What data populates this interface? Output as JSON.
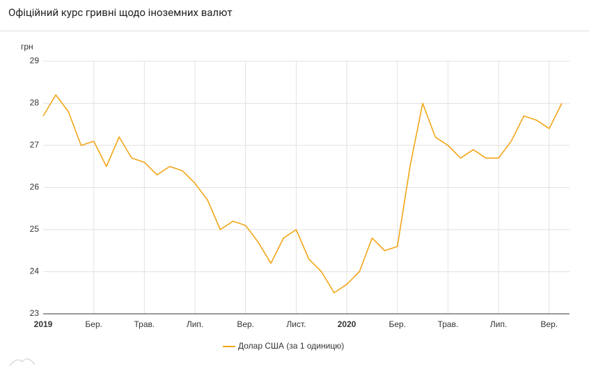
{
  "chart_data": {
    "type": "line",
    "title": "Офіційний курс гривні щодо іноземних валют",
    "y_label": "грн",
    "categories": [
      "2019",
      null,
      null,
      null,
      "Бер.",
      null,
      null,
      null,
      "Трав.",
      null,
      null,
      null,
      "Лип.",
      null,
      null,
      null,
      "Вер.",
      null,
      null,
      null,
      "Лист.",
      null,
      null,
      null,
      "2020",
      null,
      null,
      null,
      "Бер.",
      null,
      null,
      null,
      "Трав.",
      null,
      null,
      null,
      "Лип.",
      null,
      null,
      null,
      "Вер.",
      null
    ],
    "series": [
      {
        "name": "Долар США (за 1 одиницю)",
        "color": "#f2a516",
        "values": [
          27.7,
          28.2,
          27.8,
          27.0,
          27.1,
          26.5,
          27.2,
          26.7,
          26.6,
          26.3,
          26.5,
          26.4,
          26.1,
          25.7,
          25.0,
          25.2,
          25.1,
          24.7,
          24.2,
          24.8,
          25.0,
          24.3,
          24.0,
          23.5,
          23.7,
          24.0,
          24.8,
          24.5,
          24.6,
          26.5,
          28.0,
          27.2,
          27.0,
          26.7,
          26.9,
          26.7,
          26.7,
          27.1,
          27.7,
          27.6,
          27.4,
          28.0
        ]
      }
    ],
    "ylim": [
      23,
      29
    ],
    "yticks": [
      23,
      24,
      25,
      26,
      27,
      28,
      29
    ],
    "grid": true,
    "legend": "bottom"
  }
}
